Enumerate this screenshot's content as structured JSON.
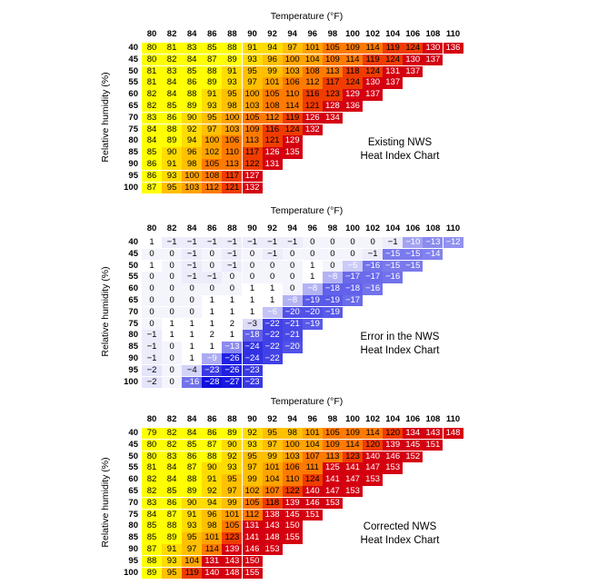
{
  "chart_data": [
    {
      "type": "heatmap",
      "title": "Temperature (°F)",
      "xlabel": "Temperature (°F)",
      "ylabel": "Relative humidity (%)",
      "annotation": [
        "Existing NWS",
        "Heat Index Chart"
      ],
      "x": [
        "80",
        "82",
        "84",
        "86",
        "88",
        "90",
        "92",
        "94",
        "96",
        "98",
        "100",
        "102",
        "104",
        "106",
        "108",
        "110"
      ],
      "y": [
        "40",
        "45",
        "50",
        "55",
        "60",
        "65",
        "70",
        "75",
        "80",
        "85",
        "90",
        "95",
        "100"
      ],
      "colormap": "heat",
      "values": [
        [
          80,
          81,
          83,
          85,
          88,
          91,
          94,
          97,
          101,
          105,
          109,
          114,
          119,
          124,
          130,
          136
        ],
        [
          80,
          82,
          84,
          87,
          89,
          93,
          96,
          100,
          104,
          109,
          114,
          119,
          124,
          130,
          137
        ],
        [
          81,
          83,
          85,
          88,
          91,
          95,
          99,
          103,
          108,
          113,
          118,
          124,
          131,
          137
        ],
        [
          81,
          84,
          86,
          89,
          93,
          97,
          101,
          106,
          112,
          117,
          124,
          130,
          137
        ],
        [
          82,
          84,
          88,
          91,
          95,
          100,
          105,
          110,
          116,
          123,
          129,
          137
        ],
        [
          82,
          85,
          89,
          93,
          98,
          103,
          108,
          114,
          121,
          128,
          136
        ],
        [
          83,
          86,
          90,
          95,
          100,
          105,
          112,
          119,
          126,
          134
        ],
        [
          84,
          88,
          92,
          97,
          103,
          109,
          116,
          124,
          132
        ],
        [
          84,
          89,
          94,
          100,
          106,
          113,
          121,
          129
        ],
        [
          85,
          90,
          96,
          102,
          110,
          117,
          126,
          135
        ],
        [
          86,
          91,
          98,
          105,
          113,
          122,
          131
        ],
        [
          86,
          93,
          100,
          108,
          117,
          127
        ],
        [
          87,
          95,
          103,
          112,
          121,
          132
        ]
      ]
    },
    {
      "type": "heatmap",
      "title": "Temperature (°F)",
      "xlabel": "Temperature (°F)",
      "ylabel": "Relative humidity (%)",
      "annotation": [
        "Error in the NWS",
        "Heat Index Chart"
      ],
      "x": [
        "80",
        "82",
        "84",
        "86",
        "88",
        "90",
        "92",
        "94",
        "96",
        "98",
        "100",
        "102",
        "104",
        "106",
        "108",
        "110"
      ],
      "y": [
        "40",
        "45",
        "50",
        "55",
        "60",
        "65",
        "70",
        "75",
        "80",
        "85",
        "90",
        "95",
        "100"
      ],
      "colormap": "error",
      "values": [
        [
          1,
          -1,
          -1,
          -1,
          -1,
          -1,
          -1,
          -1,
          0,
          0,
          0,
          0,
          -1,
          -10,
          -13,
          -12
        ],
        [
          0,
          0,
          -1,
          0,
          -1,
          0,
          -1,
          0,
          0,
          0,
          0,
          -1,
          -15,
          -15,
          -14
        ],
        [
          1,
          0,
          -1,
          0,
          -1,
          0,
          0,
          0,
          1,
          0,
          -5,
          -16,
          -15,
          -15
        ],
        [
          0,
          0,
          -1,
          -1,
          0,
          0,
          0,
          0,
          1,
          -8,
          -17,
          -17,
          -16
        ],
        [
          0,
          0,
          0,
          0,
          0,
          1,
          1,
          0,
          -8,
          -18,
          -18,
          -16
        ],
        [
          0,
          0,
          0,
          1,
          1,
          1,
          1,
          -8,
          -19,
          -19,
          -17
        ],
        [
          0,
          0,
          0,
          1,
          1,
          1,
          -6,
          -20,
          -20,
          -19
        ],
        [
          0,
          1,
          1,
          1,
          2,
          -3,
          -22,
          -21,
          -19
        ],
        [
          -1,
          1,
          1,
          2,
          1,
          -18,
          -22,
          -21
        ],
        [
          -1,
          0,
          1,
          1,
          -13,
          -24,
          -22,
          -20
        ],
        [
          -1,
          0,
          1,
          -9,
          -26,
          -24,
          -22
        ],
        [
          -2,
          0,
          -4,
          -23,
          -26,
          -23
        ],
        [
          -2,
          0,
          -16,
          -28,
          -27,
          -23
        ]
      ]
    },
    {
      "type": "heatmap",
      "title": "Temperature (°F)",
      "xlabel": "Temperature (°F)",
      "ylabel": "Relative humidity (%)",
      "annotation": [
        "Corrected NWS",
        "Heat Index Chart"
      ],
      "x": [
        "80",
        "82",
        "84",
        "86",
        "88",
        "90",
        "92",
        "94",
        "96",
        "98",
        "100",
        "102",
        "104",
        "106",
        "108",
        "110"
      ],
      "y": [
        "40",
        "45",
        "50",
        "55",
        "60",
        "65",
        "70",
        "75",
        "80",
        "85",
        "90",
        "95",
        "100"
      ],
      "colormap": "heat",
      "values": [
        [
          79,
          82,
          84,
          86,
          89,
          92,
          95,
          98,
          101,
          105,
          109,
          114,
          120,
          134,
          143,
          148
        ],
        [
          80,
          82,
          85,
          87,
          90,
          93,
          97,
          100,
          104,
          109,
          114,
          120,
          139,
          145,
          151
        ],
        [
          80,
          83,
          86,
          88,
          92,
          95,
          99,
          103,
          107,
          113,
          123,
          140,
          146,
          152
        ],
        [
          81,
          84,
          87,
          90,
          93,
          97,
          101,
          106,
          111,
          125,
          141,
          147,
          153
        ],
        [
          82,
          84,
          88,
          91,
          95,
          99,
          104,
          110,
          124,
          141,
          147,
          153
        ],
        [
          82,
          85,
          89,
          92,
          97,
          102,
          107,
          122,
          140,
          147,
          153
        ],
        [
          83,
          86,
          90,
          94,
          99,
          105,
          118,
          139,
          146,
          153
        ],
        [
          84,
          87,
          91,
          96,
          101,
          112,
          138,
          145,
          151
        ],
        [
          85,
          88,
          93,
          98,
          105,
          131,
          143,
          150
        ],
        [
          85,
          89,
          95,
          101,
          123,
          141,
          148,
          155
        ],
        [
          87,
          91,
          97,
          114,
          139,
          146,
          153
        ],
        [
          88,
          93,
          104,
          131,
          143,
          150
        ],
        [
          89,
          95,
          119,
          140,
          148,
          155
        ]
      ]
    }
  ]
}
